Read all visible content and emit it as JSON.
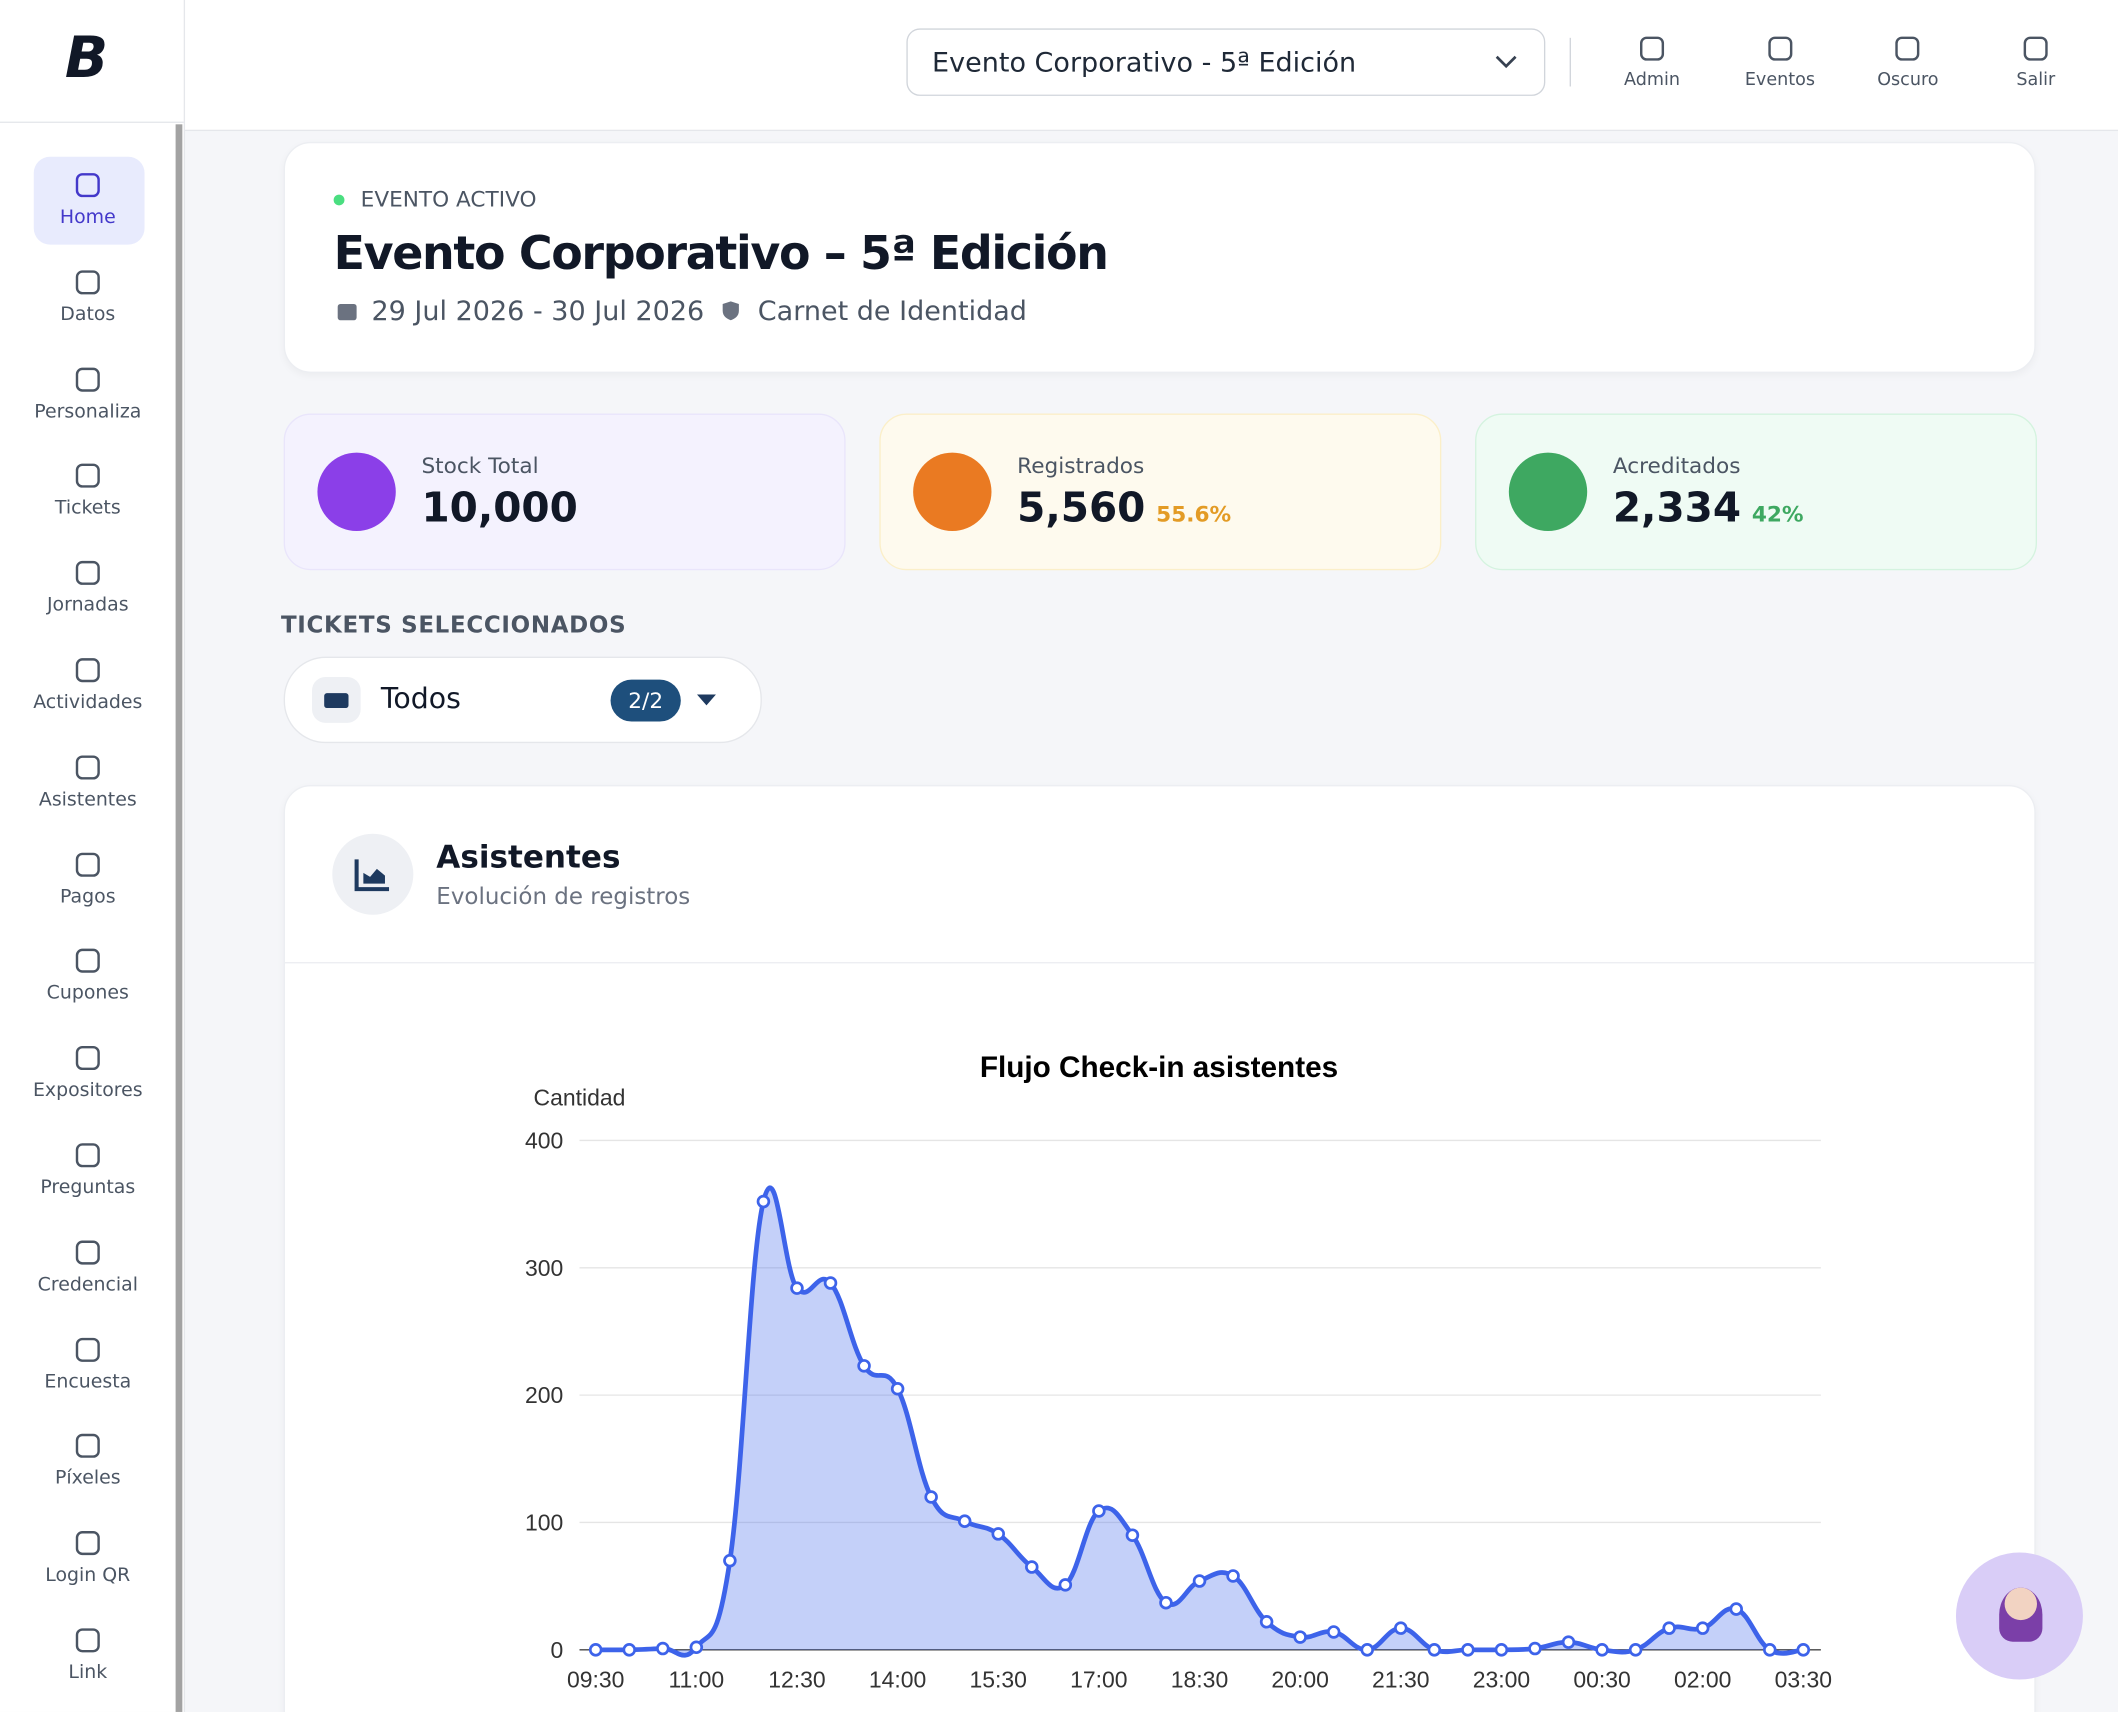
{
  "brand": "B",
  "sidebar": [
    "Home",
    "Datos",
    "Personaliza",
    "Tickets",
    "Jornadas",
    "Actividades",
    "Asistentes",
    "Pagos",
    "Cupones",
    "Expositores",
    "Preguntas",
    "Credencial",
    "Encuesta",
    "Píxeles",
    "Login QR",
    "Link"
  ],
  "header": {
    "event_select": "Evento Corporativo - 5ª Edición",
    "actions": [
      "Admin",
      "Eventos",
      "Oscuro",
      "Salir"
    ]
  },
  "event": {
    "status": "EVENTO ACTIVO",
    "title": "Evento Corporativo – 5ª Edición",
    "dates": "29 Jul 2026 - 30 Jul 2026",
    "document": "Carnet de Identidad"
  },
  "stats": [
    {
      "label": "Stock Total",
      "value": "10,000"
    },
    {
      "label": "Registrados",
      "value": "5,560",
      "percent": "55.6%"
    },
    {
      "label": "Acreditados",
      "value": "2,334",
      "percent": "42%"
    }
  ],
  "tickets": {
    "heading": "TICKETS SELECCIONADOS",
    "selected": "Todos",
    "count": "2/2"
  },
  "card": {
    "title": "Asistentes",
    "subtitle": "Evolución de registros"
  },
  "chart_data": {
    "type": "area",
    "title": "Flujo Check-in asistentes",
    "y_label": "Cantidad",
    "categories": [
      "09:30",
      null,
      null,
      "11:00",
      null,
      null,
      "12:30",
      null,
      null,
      "14:00",
      null,
      null,
      "15:30",
      null,
      null,
      "17:00",
      null,
      null,
      "18:30",
      null,
      null,
      "20:00",
      null,
      null,
      "21:30",
      null,
      null,
      "23:00",
      null,
      null,
      "00:30",
      null,
      null,
      "02:00",
      null,
      null,
      "03:30"
    ],
    "series": [
      {
        "name": "Asistentes",
        "color": "#3d63ea",
        "values": [
          0,
          0,
          1,
          2,
          70,
          352,
          284,
          288,
          223,
          205,
          120,
          101,
          91,
          65,
          51,
          109,
          90,
          37,
          54,
          58,
          22,
          10,
          14,
          0,
          17,
          0,
          0,
          0,
          1,
          6,
          0,
          0,
          17,
          17,
          32,
          0,
          0
        ]
      }
    ],
    "ylim": [
      0,
      400
    ],
    "yticks": [
      0,
      100,
      200,
      300,
      400
    ],
    "grid": true
  }
}
